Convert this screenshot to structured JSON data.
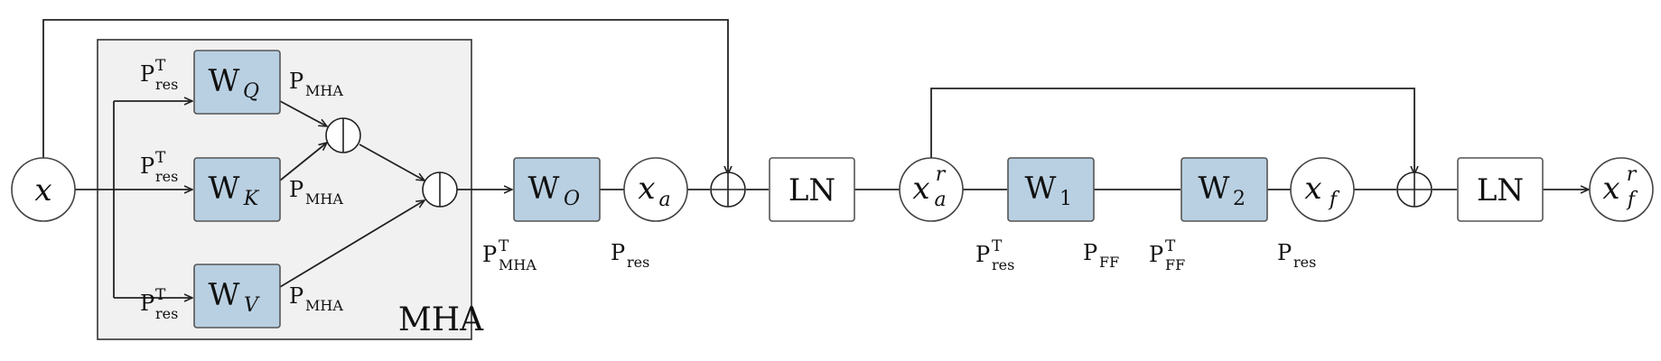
{
  "mha_block": {
    "title": "MHA"
  },
  "nodes": {
    "x": {
      "base": "x"
    },
    "x_a": {
      "base": "x",
      "sub": "a"
    },
    "x_a_r": {
      "base": "x",
      "sub": "a",
      "sup": "r"
    },
    "x_f": {
      "base": "x",
      "sub": "f"
    },
    "x_f_r": {
      "base": "x",
      "sub": "f",
      "sup": "r"
    }
  },
  "weights": {
    "wq": {
      "base": "W",
      "sub": "Q"
    },
    "wk": {
      "base": "W",
      "sub": "K"
    },
    "wv": {
      "base": "W",
      "sub": "V"
    },
    "wo": {
      "base": "W",
      "sub": "O"
    },
    "w1": {
      "base": "W",
      "sub": "1"
    },
    "w2": {
      "base": "W",
      "sub": "2"
    }
  },
  "layernorm": {
    "ln1": "LN",
    "ln2": "LN"
  },
  "projections": {
    "p_res_t_q": {
      "base": "P",
      "sub": "res",
      "sup": "T"
    },
    "p_res_t_k": {
      "base": "P",
      "sub": "res",
      "sup": "T"
    },
    "p_res_t_v": {
      "base": "P",
      "sub": "res",
      "sup": "T"
    },
    "p_mha_q": {
      "base": "P",
      "sub": "MHA"
    },
    "p_mha_k": {
      "base": "P",
      "sub": "MHA"
    },
    "p_mha_v": {
      "base": "P",
      "sub": "MHA"
    },
    "p_mha_t_o": {
      "base": "P",
      "sub": "MHA",
      "sup": "T"
    },
    "p_res_o": {
      "base": "P",
      "sub": "res"
    },
    "p_res_t_1": {
      "base": "P",
      "sub": "res",
      "sup": "T"
    },
    "p_ff_1": {
      "base": "P",
      "sub": "FF"
    },
    "p_ff_t_2": {
      "base": "P",
      "sub": "FF",
      "sup": "T"
    },
    "p_res_2": {
      "base": "P",
      "sub": "res"
    }
  },
  "colors": {
    "weight_fill": "#b9d0e2",
    "mha_fill": "#f1f1f1",
    "stroke": "#222222"
  }
}
